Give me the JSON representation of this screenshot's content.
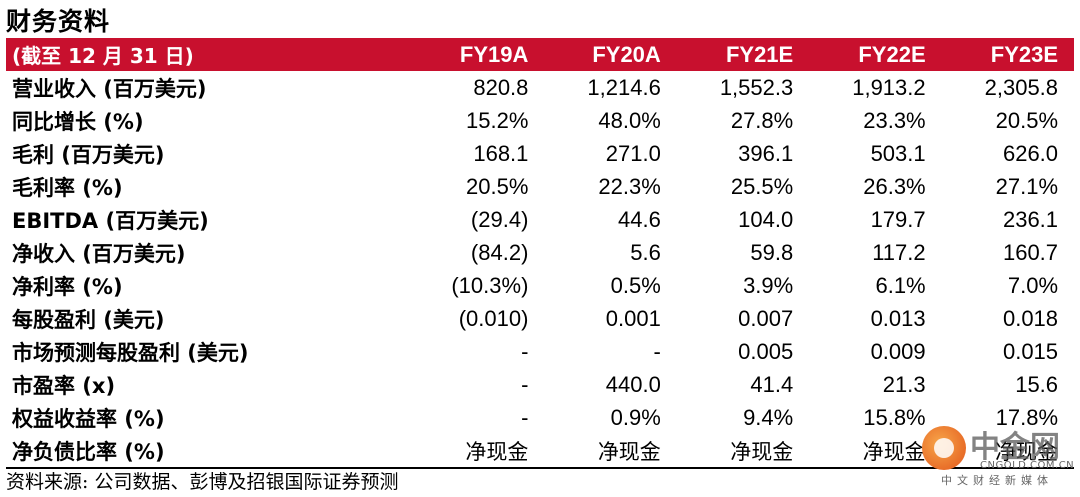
{
  "title": "财务资料",
  "header": {
    "label": "(截至 12 月 31 日)",
    "columns": [
      "FY19A",
      "FY20A",
      "FY21E",
      "FY22E",
      "FY23E"
    ]
  },
  "rows": [
    {
      "label": "营业收入 (百万美元)",
      "values": [
        "820.8",
        "1,214.6",
        "1,552.3",
        "1,913.2",
        "2,305.8"
      ]
    },
    {
      "label": "同比增长 (%)",
      "values": [
        "15.2%",
        "48.0%",
        "27.8%",
        "23.3%",
        "20.5%"
      ]
    },
    {
      "label": "毛利 (百万美元)",
      "values": [
        "168.1",
        "271.0",
        "396.1",
        "503.1",
        "626.0"
      ]
    },
    {
      "label": "毛利率 (%)",
      "values": [
        "20.5%",
        "22.3%",
        "25.5%",
        "26.3%",
        "27.1%"
      ]
    },
    {
      "label": "EBITDA (百万美元)",
      "values": [
        "(29.4)",
        "44.6",
        "104.0",
        "179.7",
        "236.1"
      ]
    },
    {
      "label": "净收入 (百万美元)",
      "values": [
        "(84.2)",
        "5.6",
        "59.8",
        "117.2",
        "160.7"
      ]
    },
    {
      "label": "净利率 (%)",
      "values": [
        "(10.3%)",
        "0.5%",
        "3.9%",
        "6.1%",
        "7.0%"
      ]
    },
    {
      "label": "每股盈利 (美元)",
      "values": [
        "(0.010)",
        "0.001",
        "0.007",
        "0.013",
        "0.018"
      ]
    },
    {
      "label": "市场预测每股盈利 (美元)",
      "values": [
        "-",
        "-",
        "0.005",
        "0.009",
        "0.015"
      ]
    },
    {
      "label": "市盈率 (x)",
      "values": [
        "-",
        "440.0",
        "41.4",
        "21.3",
        "15.6"
      ]
    },
    {
      "label": "权益收益率 (%)",
      "values": [
        "-",
        "0.9%",
        "9.4%",
        "15.8%",
        "17.8%"
      ]
    },
    {
      "label": "净负债比率 (%)",
      "values": [
        "净现金",
        "净现金",
        "净现金",
        "净现金",
        "净现金"
      ]
    }
  ],
  "source": "资料来源: 公司数据、彭博及招银国际证券预测",
  "watermark": {
    "name": "中金网",
    "domain": "CNGOLD.COM.CN",
    "sub": "中文财经新媒体",
    "colors": {
      "circle": "#e2561a",
      "text": "#5a5a5a"
    }
  },
  "colors": {
    "header_bg": "#c8102e",
    "header_text": "#ffffff",
    "rule": "#000000"
  }
}
